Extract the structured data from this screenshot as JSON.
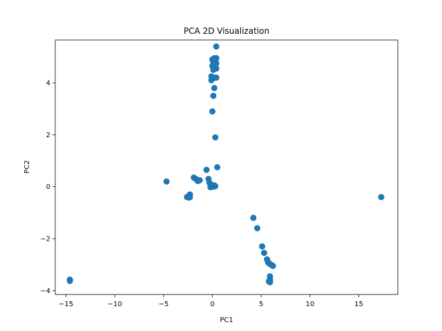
{
  "chart_data": {
    "type": "scatter",
    "title": "PCA 2D Visualization",
    "xlabel": "PC1",
    "ylabel": "PC2",
    "xlim": [
      -16.1,
      19.0
    ],
    "ylim": [
      -4.15,
      5.65
    ],
    "xticks": [
      -15,
      -10,
      -5,
      0,
      5,
      10,
      15
    ],
    "yticks": [
      -4,
      -2,
      0,
      2,
      4
    ],
    "grid": false,
    "color": "#1f77b4",
    "points": [
      [
        0.4,
        5.4
      ],
      [
        0.2,
        4.95
      ],
      [
        0.4,
        4.95
      ],
      [
        0.0,
        4.9
      ],
      [
        0.3,
        4.85
      ],
      [
        0.1,
        4.8
      ],
      [
        0.4,
        4.75
      ],
      [
        0.2,
        4.7
      ],
      [
        0.0,
        4.65
      ],
      [
        0.3,
        4.6
      ],
      [
        0.2,
        4.55
      ],
      [
        0.4,
        4.55
      ],
      [
        0.1,
        4.5
      ],
      [
        -0.1,
        4.25
      ],
      [
        0.1,
        4.2
      ],
      [
        0.4,
        4.2
      ],
      [
        -0.1,
        4.1
      ],
      [
        0.3,
        4.2
      ],
      [
        0.2,
        3.8
      ],
      [
        0.1,
        3.5
      ],
      [
        0.0,
        2.9
      ],
      [
        0.3,
        1.9
      ],
      [
        0.5,
        0.75
      ],
      [
        -0.6,
        0.65
      ],
      [
        -0.4,
        0.3
      ],
      [
        -0.3,
        0.15
      ],
      [
        -0.2,
        0.1
      ],
      [
        -0.1,
        0.05
      ],
      [
        0.0,
        0.0
      ],
      [
        0.1,
        0.0
      ],
      [
        0.3,
        0.02
      ],
      [
        -0.2,
        -0.02
      ],
      [
        0.2,
        0.05
      ],
      [
        -1.9,
        0.35
      ],
      [
        -1.7,
        0.3
      ],
      [
        -1.5,
        0.25
      ],
      [
        -1.3,
        0.25
      ],
      [
        -1.5,
        0.22
      ],
      [
        -2.3,
        -0.3
      ],
      [
        -2.4,
        -0.35
      ],
      [
        -2.5,
        -0.38
      ],
      [
        -2.6,
        -0.4
      ],
      [
        -2.3,
        -0.4
      ],
      [
        -2.4,
        -0.42
      ],
      [
        -4.7,
        0.2
      ],
      [
        4.2,
        -1.2
      ],
      [
        4.6,
        -1.6
      ],
      [
        5.1,
        -2.3
      ],
      [
        5.3,
        -2.55
      ],
      [
        5.6,
        -2.8
      ],
      [
        5.7,
        -2.9
      ],
      [
        5.8,
        -2.95
      ],
      [
        6.0,
        -3.0
      ],
      [
        6.2,
        -3.05
      ],
      [
        5.9,
        -3.45
      ],
      [
        5.9,
        -3.55
      ],
      [
        5.9,
        -3.6
      ],
      [
        5.8,
        -3.65
      ],
      [
        5.9,
        -3.68
      ],
      [
        -14.6,
        -3.58
      ],
      [
        -14.6,
        -3.63
      ],
      [
        17.3,
        -0.4
      ]
    ]
  }
}
